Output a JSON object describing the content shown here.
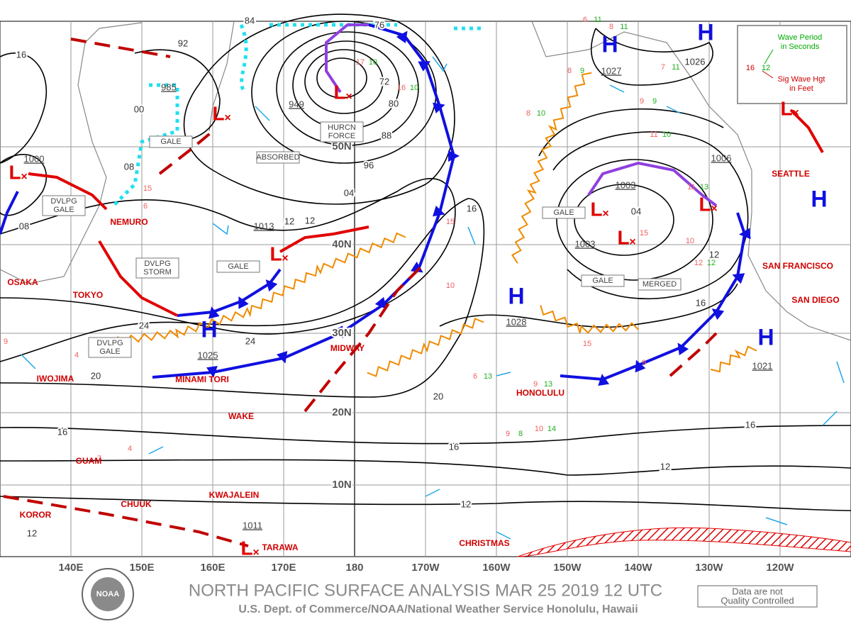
{
  "title": "NORTH PACIFIC SURFACE ANALYSIS MAR 25 2019 12 UTC",
  "subtitle": "U.S. Dept. of Commerce/NOAA/National Weather Service Honolulu, Hawaii",
  "disclaimer": [
    "Data are not",
    "Quality Controlled"
  ],
  "legend": {
    "period_sample": "12",
    "period_text": [
      "Wave Period",
      "in Seconds"
    ],
    "height_sample": "16",
    "height_text": [
      "Sig Wave Hgt",
      "in Feet"
    ]
  },
  "longitudes": [
    "140E",
    "150E",
    "160E",
    "170E",
    "180",
    "170W",
    "160W",
    "150W",
    "140W",
    "130W",
    "120W"
  ],
  "latitudes": [
    "50N",
    "40N",
    "30N",
    "20N",
    "10N"
  ],
  "places": [
    "OSAKA",
    "TOKYO",
    "NEMURO",
    "IWOJIMA",
    "MINAMI TORI",
    "MIDWAY",
    "WAKE",
    "GUAM",
    "KWAJALEIN",
    "CHUUK",
    "KOROR",
    "TARAWA",
    "CHRISTMAS",
    "HONOLULU",
    "SAN FRANCISCO",
    "SEATTLE",
    "SAN DIEGO"
  ],
  "highs": [
    {
      "symbol": "H",
      "pressure": "1027"
    },
    {
      "symbol": "H"
    },
    {
      "symbol": "H",
      "pressure": "1028"
    },
    {
      "symbol": "H",
      "pressure": "1025"
    },
    {
      "symbol": "H",
      "pressure": "1021"
    },
    {
      "symbol": "H"
    }
  ],
  "lows": [
    {
      "symbol": "L",
      "pressure": "949"
    },
    {
      "symbol": "L",
      "pressure": "985"
    },
    {
      "symbol": "L",
      "pressure": "1000"
    },
    {
      "symbol": "L",
      "pressure": "1013"
    },
    {
      "symbol": "L",
      "pressure": "1003"
    },
    {
      "symbol": "L",
      "pressure": "1003"
    },
    {
      "symbol": "L",
      "pressure": "1006"
    },
    {
      "symbol": "L"
    },
    {
      "symbol": "L",
      "pressure": "1011"
    }
  ],
  "isobar_labels": [
    "16",
    "92",
    "84",
    "76",
    "00",
    "08",
    "08",
    "72",
    "80",
    "88",
    "96",
    "04",
    "12",
    "16",
    "24",
    "24",
    "20",
    "20",
    "16",
    "16",
    "16",
    "12",
    "12",
    "12",
    "04",
    "12",
    "16",
    "1026",
    "12"
  ],
  "boxes": [
    [
      "GALE"
    ],
    [
      "DVLPG",
      "GALE"
    ],
    [
      "DVLPG",
      "STORM"
    ],
    [
      "GALE"
    ],
    [
      "HURCN",
      "FORCE"
    ],
    [
      "ABSORBED"
    ],
    [
      "GALE"
    ],
    [
      "GALE"
    ],
    [
      "MERGED"
    ],
    [
      "DVLPG",
      "GALE"
    ]
  ],
  "waves": [
    {
      "height": "17",
      "period": "10"
    },
    {
      "height": "16",
      "period": "10"
    },
    {
      "height": "8",
      "period": "10"
    },
    {
      "height": "10",
      "period": "14"
    },
    {
      "height": "9",
      "period": "8"
    },
    {
      "height": "11",
      "period": "13"
    },
    {
      "height": "12",
      "period": "12"
    },
    {
      "height": "9",
      "period": "9"
    },
    {
      "height": "11",
      "period": "10"
    },
    {
      "height": "9",
      "period": "13"
    },
    {
      "height": "6",
      "period": "11"
    },
    {
      "height": "8",
      "period": "11"
    },
    {
      "height": "7",
      "period": "11"
    },
    {
      "height": "8",
      "period": "9"
    },
    {
      "height": "6",
      "period": "13"
    }
  ],
  "wave_heights": [
    "15",
    "10",
    "15",
    "4",
    "4",
    "6",
    "15",
    "9",
    "7",
    "10",
    "15",
    "9"
  ]
}
